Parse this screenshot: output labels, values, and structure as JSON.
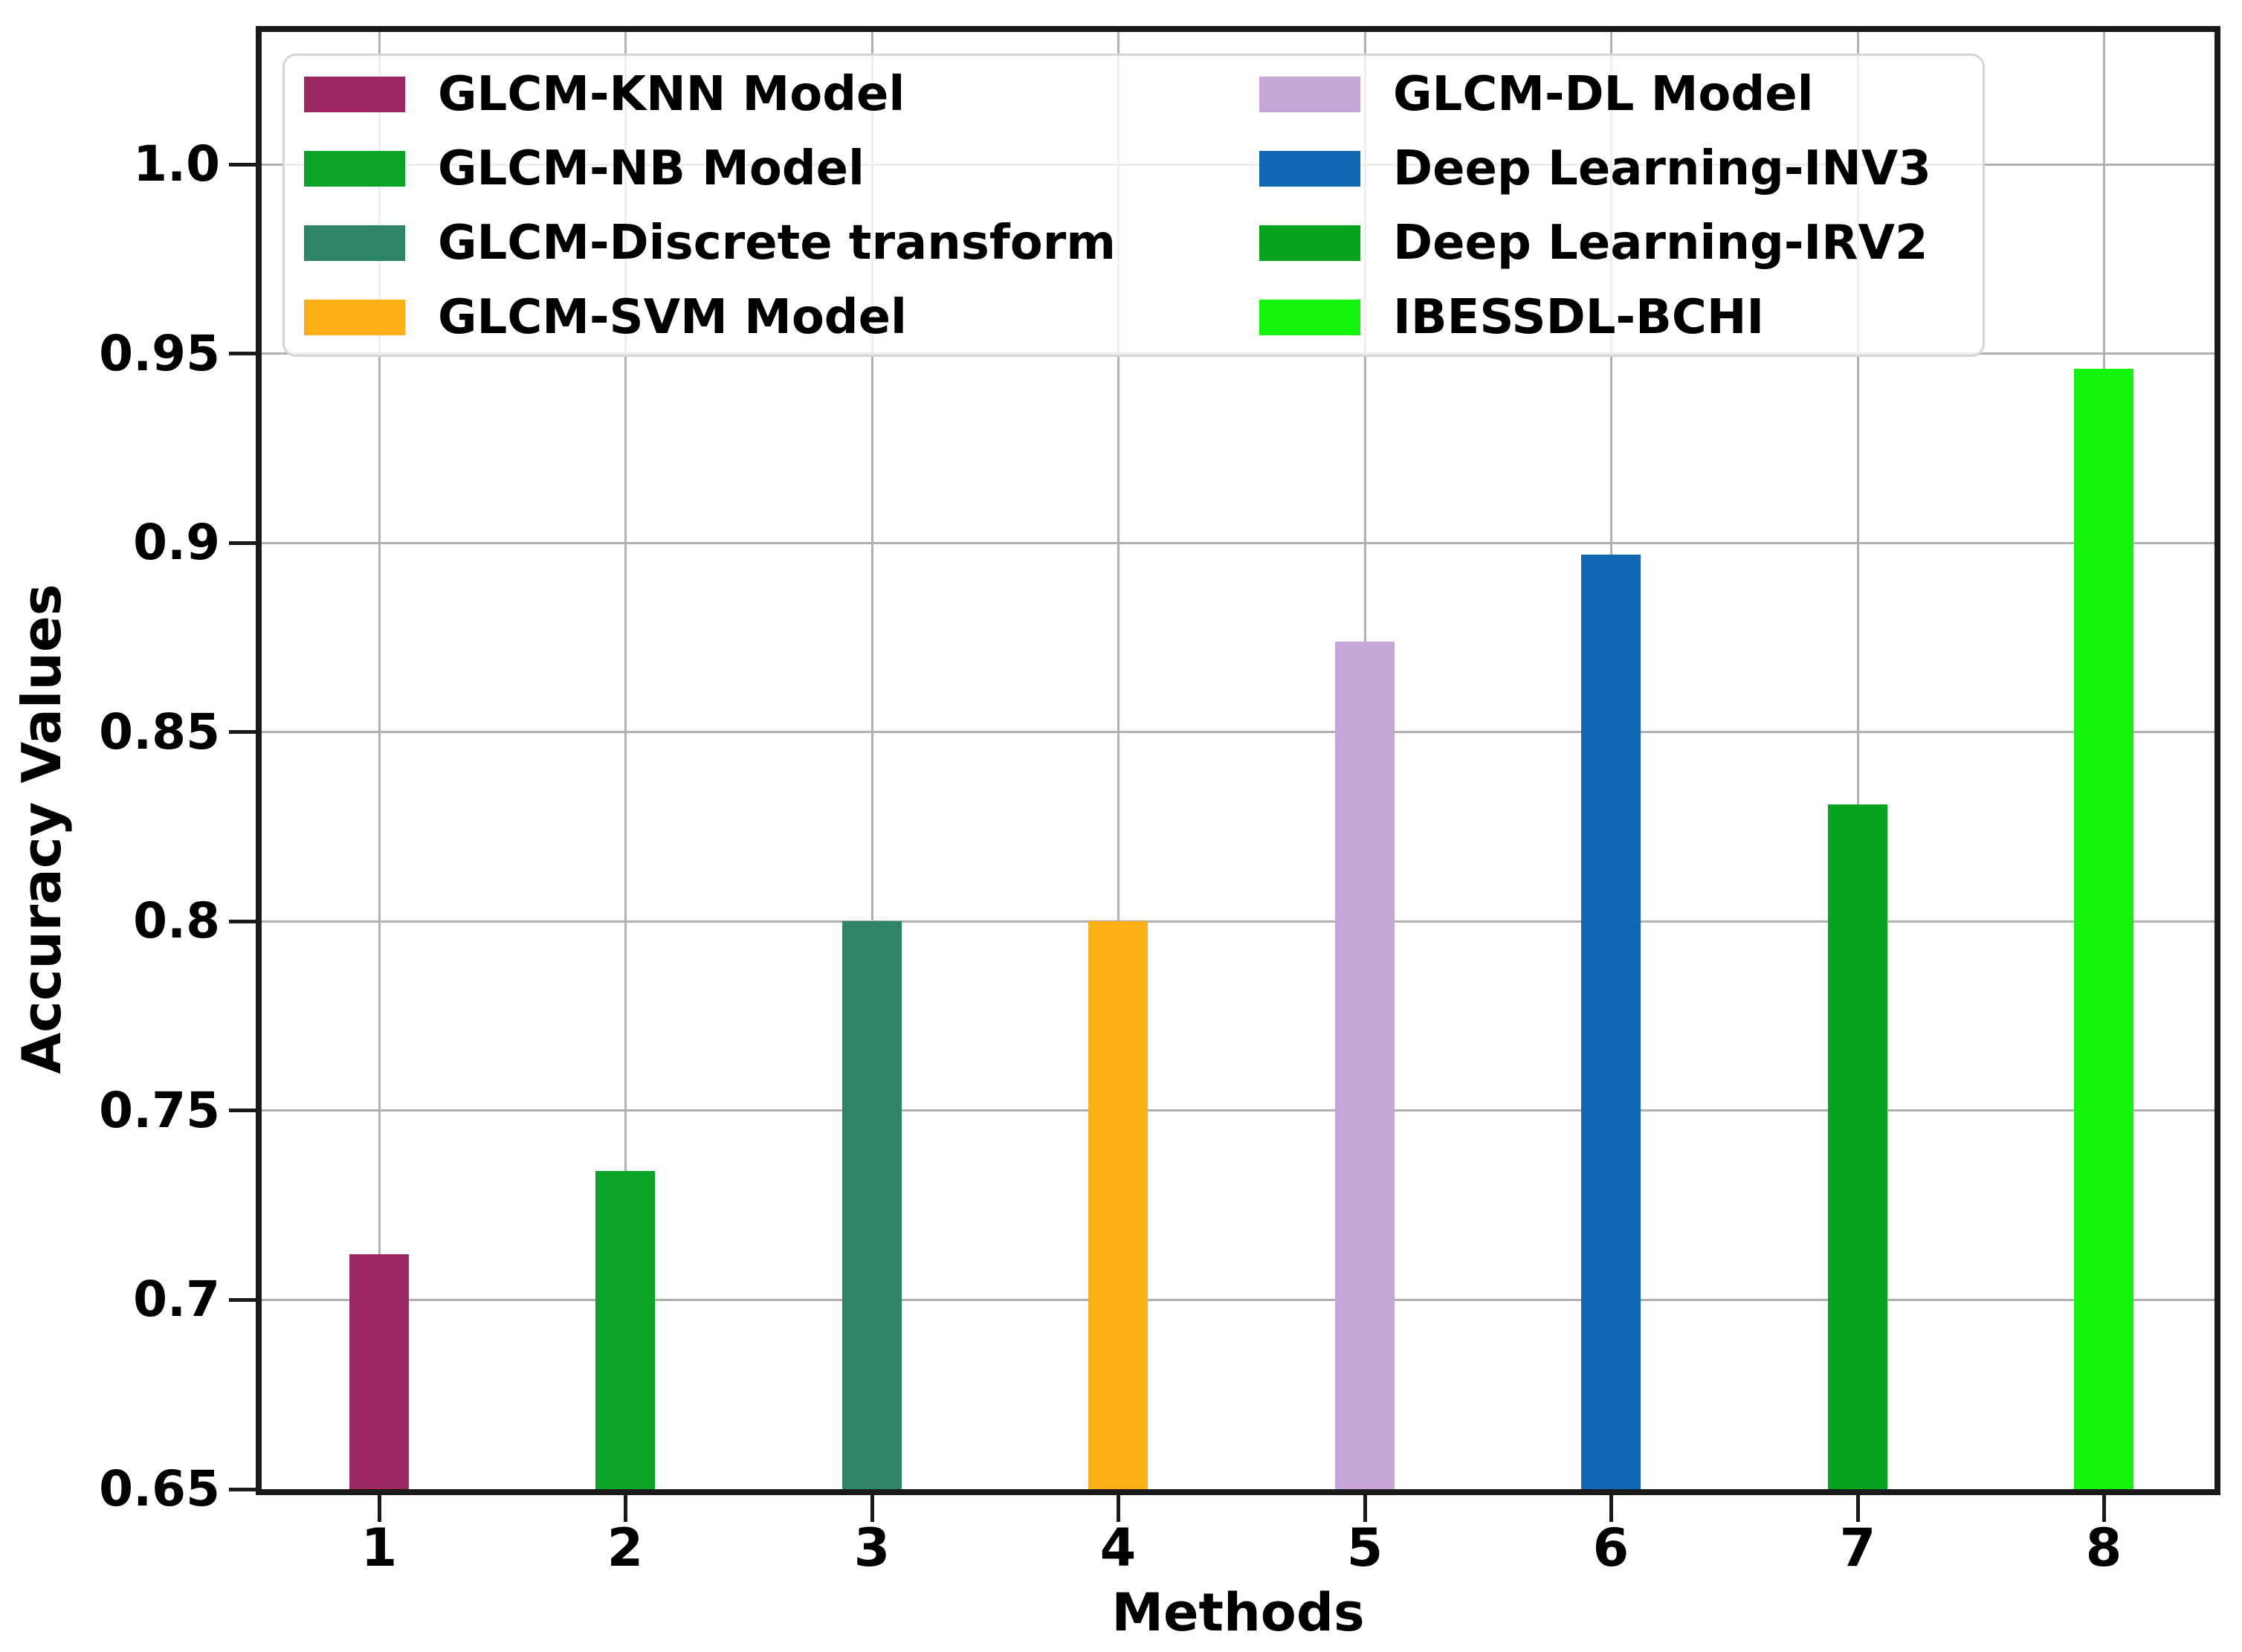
{
  "chart_data": {
    "type": "bar",
    "title": "",
    "xlabel": "Methods",
    "ylabel": "Accuracy Values",
    "categories": [
      "1",
      "2",
      "3",
      "4",
      "5",
      "6",
      "7",
      "8"
    ],
    "bars": [
      {
        "category": "1",
        "label": "GLCM-KNN Model",
        "value": 0.712,
        "color": "#9B2764"
      },
      {
        "category": "2",
        "label": "GLCM-NB Model",
        "value": 0.734,
        "color": "#0AA528"
      },
      {
        "category": "3",
        "label": "GLCM-Discrete transform",
        "value": 0.8,
        "color": "#2E8464"
      },
      {
        "category": "4",
        "label": "GLCM-SVM Model",
        "value": 0.8,
        "color": "#FBB017"
      },
      {
        "category": "5",
        "label": "GLCM-DL Model",
        "value": 0.874,
        "color": "#C6A6D9"
      },
      {
        "category": "6",
        "label": "Deep Learning-INV3",
        "value": 0.897,
        "color": "#1167B1"
      },
      {
        "category": "7",
        "label": "Deep Learning-IRV2",
        "value": 0.831,
        "color": "#06A41E"
      },
      {
        "category": "8",
        "label": "IBESSDL-BCHI",
        "value": 0.946,
        "color": "#12F40B"
      }
    ],
    "y_ticks": [
      {
        "label": "1.0",
        "value": 1.0
      },
      {
        "label": "0.95",
        "value": 0.95
      },
      {
        "label": "0.9",
        "value": 0.9
      },
      {
        "label": "0.85",
        "value": 0.85
      },
      {
        "label": "0.8",
        "value": 0.8
      },
      {
        "label": "0.75",
        "value": 0.75
      },
      {
        "label": "0.7",
        "value": 0.7
      },
      {
        "label": "0.65",
        "value": 0.65
      }
    ],
    "ylim": [
      0.65,
      1.035
    ],
    "grid": true,
    "legend_position": "upper-left, 2 columns",
    "colors": {
      "grid": "#b0b0b0",
      "spine": "#1a1a1a",
      "background": "#ffffff"
    }
  }
}
